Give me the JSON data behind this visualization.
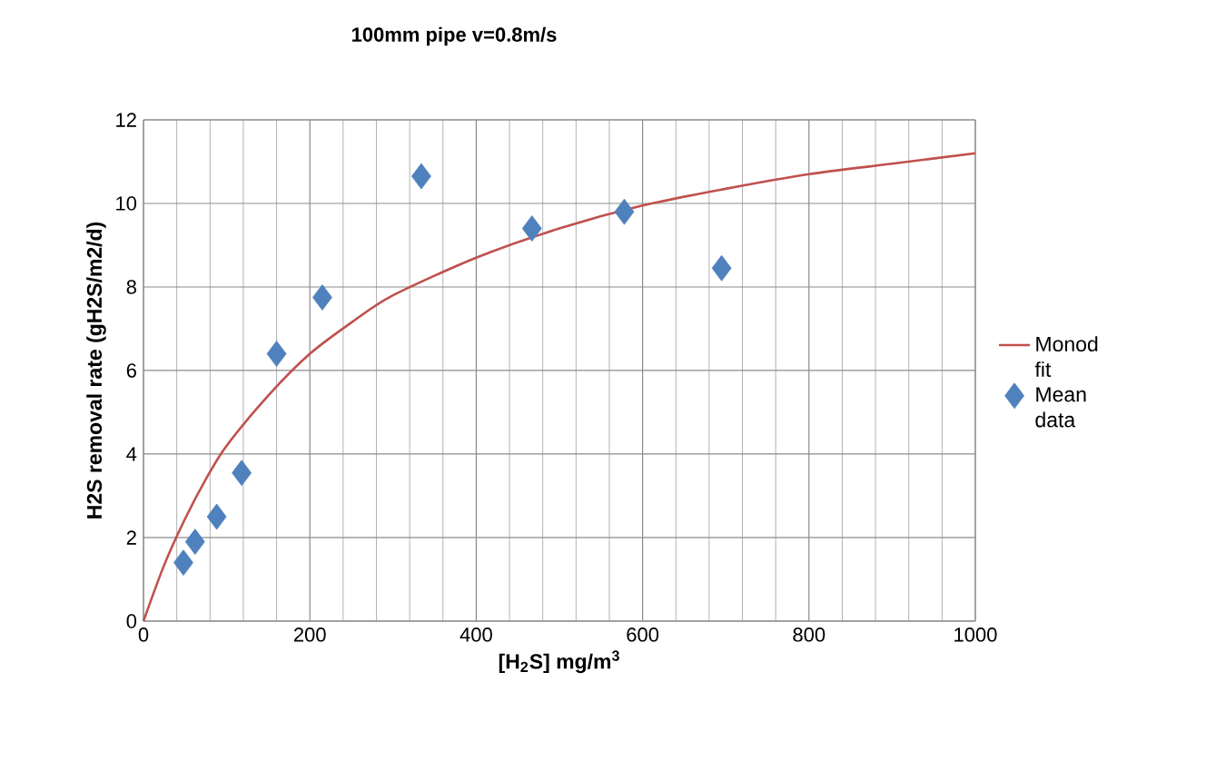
{
  "chart_data": {
    "type": "scatter",
    "title": "100mm pipe v=0.8m/s",
    "xlabel": "[H$_{2}$S] mg/m$^{3}$",
    "ylabel": "H2S removal rate (gH2S/m2/d)",
    "xlim": [
      0,
      1000
    ],
    "ylim": [
      0,
      12
    ],
    "xticks": [
      0,
      200,
      400,
      600,
      800,
      1000
    ],
    "yticks": [
      0,
      2,
      4,
      6,
      8,
      10,
      12
    ],
    "grid": true,
    "legend": "right",
    "series": [
      {
        "name": "Monod fit",
        "type": "line",
        "color": "#c0504d",
        "marker": "none",
        "line_style": "solid",
        "x": [
          0,
          25,
          50,
          75,
          100,
          150,
          200,
          250,
          300,
          400,
          500,
          600,
          700,
          800,
          900,
          1000
        ],
        "values": [
          0,
          1.35,
          2.45,
          3.4,
          4.2,
          5.4,
          6.4,
          7.15,
          7.8,
          8.7,
          9.4,
          9.95,
          10.35,
          10.7,
          10.95,
          11.2
        ]
      },
      {
        "name": "Mean data",
        "color": "#4f81bd",
        "marker": "diamond",
        "x": [
          48,
          62,
          88,
          118,
          160,
          215,
          334,
          467,
          578,
          695
        ],
        "values": [
          1.4,
          1.9,
          2.5,
          3.55,
          6.4,
          7.75,
          10.65,
          9.4,
          9.8,
          8.45
        ]
      }
    ]
  }
}
